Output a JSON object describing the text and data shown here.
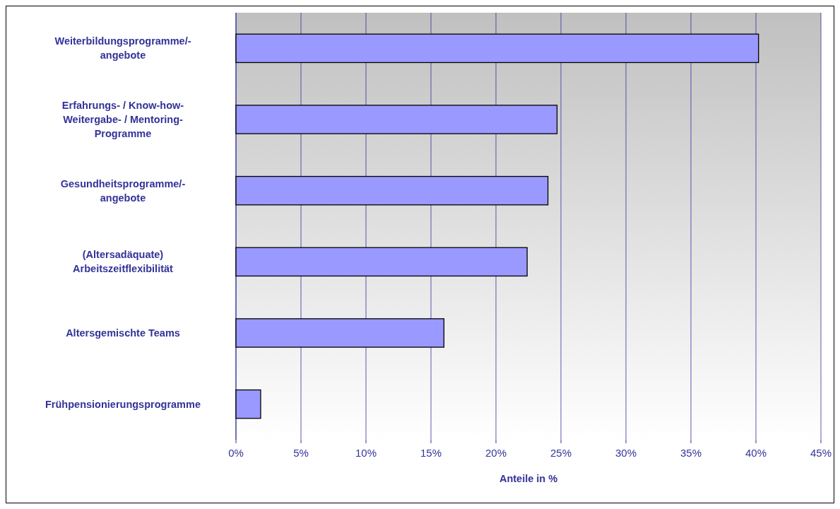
{
  "chart_data": {
    "type": "bar",
    "orientation": "horizontal",
    "xlabel": "Anteile in %",
    "categories": [
      "Weiterbildungsprogramme/-\nangebote",
      "Erfahrungs- / Know-how-\nWeitergabe- / Mentoring-\nProgramme",
      "Gesundheitsprogramme/-\nangebote",
      "(Altersadäquate)\nArbeitszeitflexibilität",
      "Altersgemischte Teams",
      "Frühpensionierungsprogramme"
    ],
    "values": [
      40.2,
      24.7,
      24.0,
      22.4,
      16.0,
      1.9
    ],
    "color": "#9999ff",
    "xlim": [
      0,
      45
    ],
    "xticks": [
      {
        "value": 0,
        "label": "0%"
      },
      {
        "value": 5,
        "label": "5%"
      },
      {
        "value": 10,
        "label": "10%"
      },
      {
        "value": 15,
        "label": "15%"
      },
      {
        "value": 20,
        "label": "20%"
      },
      {
        "value": 25,
        "label": "25%"
      },
      {
        "value": 30,
        "label": "30%"
      },
      {
        "value": 35,
        "label": "35%"
      },
      {
        "value": 40,
        "label": "40%"
      },
      {
        "value": 45,
        "label": "45%"
      }
    ],
    "grid": "x"
  }
}
